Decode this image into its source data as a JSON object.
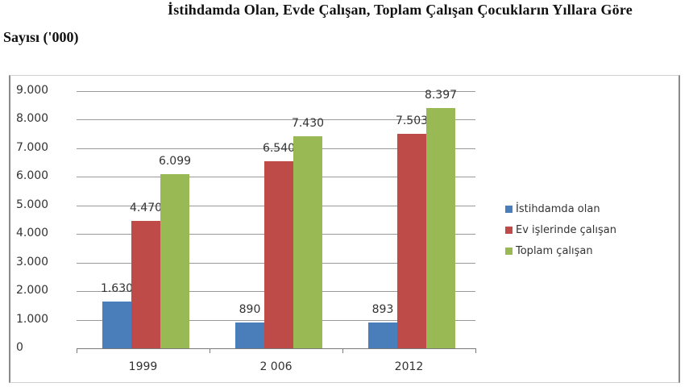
{
  "title": {
    "line1": "İstihdamda Olan, Evde Çalışan, Toplam Çalışan Çocukların Yıllara Göre",
    "line2": "Sayısı ('000)"
  },
  "chart_data": {
    "type": "bar",
    "title": "İstihdamda Olan, Evde Çalışan, Toplam Çalışan Çocukların Yıllara Göre Sayısı ('000)",
    "xlabel": "",
    "ylabel": "",
    "categories": [
      "1999",
      "2 006",
      "2012"
    ],
    "series": [
      {
        "name": "İstihdamda olan",
        "color": "#4a7ebb",
        "values": [
          1630,
          890,
          893
        ],
        "labels": [
          "1.630",
          "890",
          "893"
        ]
      },
      {
        "name": "Ev işlerinde çalışan",
        "color": "#be4b48",
        "values": [
          4470,
          6540,
          7503
        ],
        "labels": [
          "4.470",
          "6.540",
          "7.503"
        ]
      },
      {
        "name": "Toplam çalışan",
        "color": "#98b954",
        "values": [
          6099,
          7430,
          8397
        ],
        "labels": [
          "6.099",
          "7.430",
          "8.397"
        ]
      }
    ],
    "ylim": [
      0,
      9000
    ],
    "yticks": [
      "0",
      "1.000",
      "2.000",
      "3.000",
      "4.000",
      "5.000",
      "6.000",
      "7.000",
      "8.000",
      "9.000"
    ],
    "grid": true,
    "legend_position": "right"
  }
}
